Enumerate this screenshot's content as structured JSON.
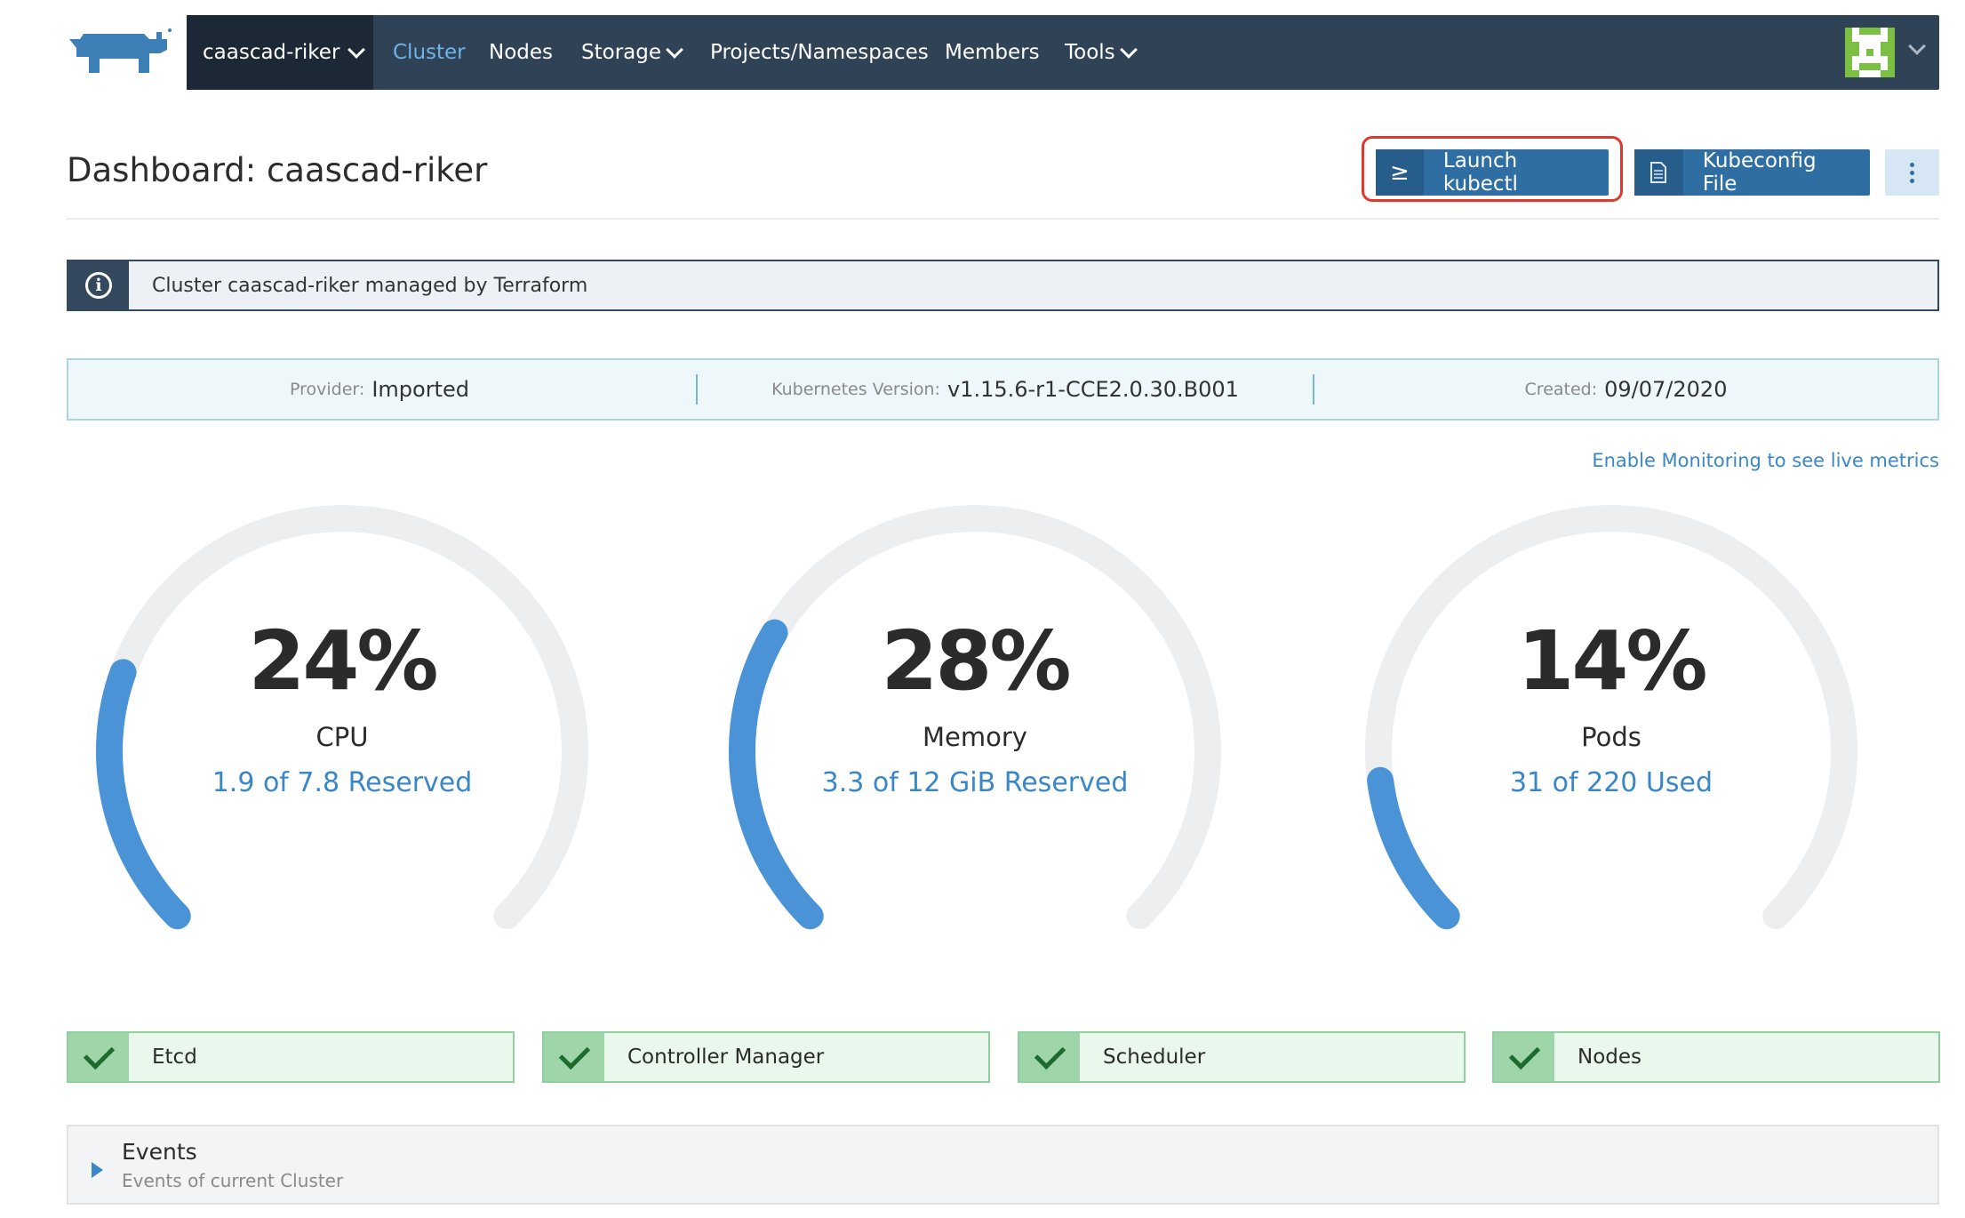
{
  "header": {
    "cluster_name": "caascad-riker",
    "nav": [
      {
        "label": "Cluster",
        "active": true,
        "dropdown": false
      },
      {
        "label": "Nodes",
        "active": false,
        "dropdown": false
      },
      {
        "label": "Storage",
        "active": false,
        "dropdown": true
      },
      {
        "label": "Projects/Namespaces",
        "active": false,
        "dropdown": false
      },
      {
        "label": "Members",
        "active": false,
        "dropdown": false
      },
      {
        "label": "Tools",
        "active": false,
        "dropdown": true
      }
    ],
    "logo_icon": "rancher-cow-logo",
    "avatar_icon": "identicon-avatar"
  },
  "page": {
    "title": "Dashboard: caascad-riker",
    "launch_kubectl": {
      "icon": "≥",
      "label": "Launch kubectl"
    },
    "kubeconfig": {
      "icon": "file-icon",
      "label": "Kubeconfig File"
    },
    "more_icon": "vertical-ellipsis-icon"
  },
  "banner": {
    "icon": "i",
    "text": "Cluster caascad-riker managed by Terraform"
  },
  "info": {
    "provider_label": "Provider:",
    "provider_value": "Imported",
    "version_label": "Kubernetes Version:",
    "version_value": "v1.15.6-r1-CCE2.0.30.B001",
    "created_label": "Created:",
    "created_value": "09/07/2020"
  },
  "monitoring_link": "Enable Monitoring to see live metrics",
  "gauges": [
    {
      "percent_label": "24%",
      "value": 0.24,
      "name": "CPU",
      "detail": "1.9 of 7.8 Reserved"
    },
    {
      "percent_label": "28%",
      "value": 0.28,
      "name": "Memory",
      "detail": "3.3 of 12 GiB Reserved"
    },
    {
      "percent_label": "14%",
      "value": 0.14,
      "name": "Pods",
      "detail": "31 of 220 Used"
    }
  ],
  "components": [
    {
      "label": "Etcd",
      "status": "healthy"
    },
    {
      "label": "Controller Manager",
      "status": "healthy"
    },
    {
      "label": "Scheduler",
      "status": "healthy"
    },
    {
      "label": "Nodes",
      "status": "healthy"
    }
  ],
  "events": {
    "title": "Events",
    "subtitle": "Events of current Cluster"
  },
  "colors": {
    "nav_bg": "#2f4256",
    "accent": "#3a87c8",
    "gauge_fill": "#4a93d6",
    "gauge_track": "#eceeef",
    "healthy": "#9ed6a9"
  }
}
